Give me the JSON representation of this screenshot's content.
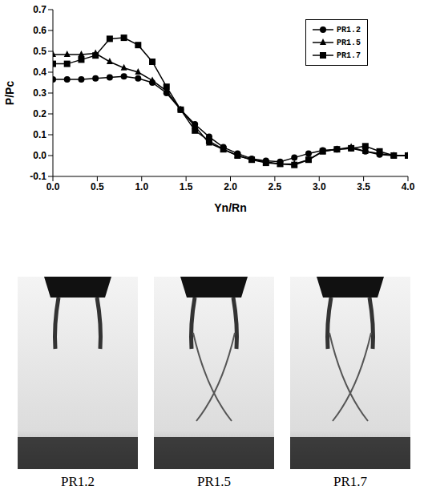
{
  "chart_data": {
    "type": "line",
    "xlabel": "Yn/Rn",
    "ylabel": "P/Pc",
    "legend": "top-right",
    "grid": false,
    "x": [
      0,
      0.16,
      0.32,
      0.48,
      0.64,
      0.8,
      0.96,
      1.12,
      1.28,
      1.44,
      1.6,
      1.76,
      1.92,
      2.08,
      2.24,
      2.4,
      2.56,
      2.72,
      2.88,
      3.04,
      3.2,
      3.36,
      3.52,
      3.68,
      3.84,
      4.0
    ],
    "xlim": [
      0,
      4
    ],
    "xticks": [
      {
        "value": 0,
        "label": "0.0"
      },
      {
        "value": 0.5,
        "label": "0.5"
      },
      {
        "value": 1,
        "label": "1.0"
      },
      {
        "value": 1.5,
        "label": "1.5"
      },
      {
        "value": 2,
        "label": "2.0"
      },
      {
        "value": 2.5,
        "label": "2.5"
      },
      {
        "value": 3,
        "label": "3.0"
      },
      {
        "value": 3.5,
        "label": "3.5"
      },
      {
        "value": 4,
        "label": "4.0"
      }
    ],
    "ylim": [
      -0.1,
      0.7
    ],
    "yticks": [
      {
        "value": -0.1,
        "label": "-0.1"
      },
      {
        "value": 0,
        "label": "0.0"
      },
      {
        "value": 0.1,
        "label": "0.1"
      },
      {
        "value": 0.2,
        "label": "0.2"
      },
      {
        "value": 0.3,
        "label": "0.3"
      },
      {
        "value": 0.4,
        "label": "0.4"
      },
      {
        "value": 0.5,
        "label": "0.5"
      },
      {
        "value": 0.6,
        "label": "0.6"
      },
      {
        "value": 0.7,
        "label": "0.7"
      }
    ],
    "series": [
      {
        "name": "PR1.2",
        "color": "#000000",
        "marker": "circle",
        "values": [
          0.365,
          0.365,
          0.365,
          0.37,
          0.375,
          0.38,
          0.37,
          0.35,
          0.3,
          0.22,
          0.15,
          0.09,
          0.04,
          0.01,
          -0.015,
          -0.025,
          -0.03,
          -0.01,
          0.01,
          0.025,
          0.03,
          0.035,
          0.02,
          0.005,
          0.0,
          0.0
        ]
      },
      {
        "name": "PR1.5",
        "color": "#000000",
        "marker": "triangle",
        "values": [
          0.485,
          0.485,
          0.485,
          0.49,
          0.45,
          0.42,
          0.4,
          0.36,
          0.31,
          0.22,
          0.14,
          0.06,
          0.03,
          0.0,
          -0.02,
          -0.03,
          -0.04,
          -0.04,
          -0.02,
          0.02,
          0.03,
          0.04,
          0.02,
          0.01,
          0.0,
          0.0
        ]
      },
      {
        "name": "PR1.7",
        "color": "#000000",
        "marker": "square",
        "values": [
          0.44,
          0.44,
          0.46,
          0.48,
          0.56,
          0.565,
          0.53,
          0.45,
          0.33,
          0.22,
          0.12,
          0.07,
          0.03,
          0.0,
          -0.02,
          -0.035,
          -0.04,
          -0.045,
          -0.02,
          0.02,
          0.03,
          0.035,
          0.045,
          0.02,
          0.0,
          0.0
        ]
      }
    ]
  },
  "images": [
    {
      "caption": "PR1.2"
    },
    {
      "caption": "PR1.5"
    },
    {
      "caption": "PR1.7"
    }
  ]
}
